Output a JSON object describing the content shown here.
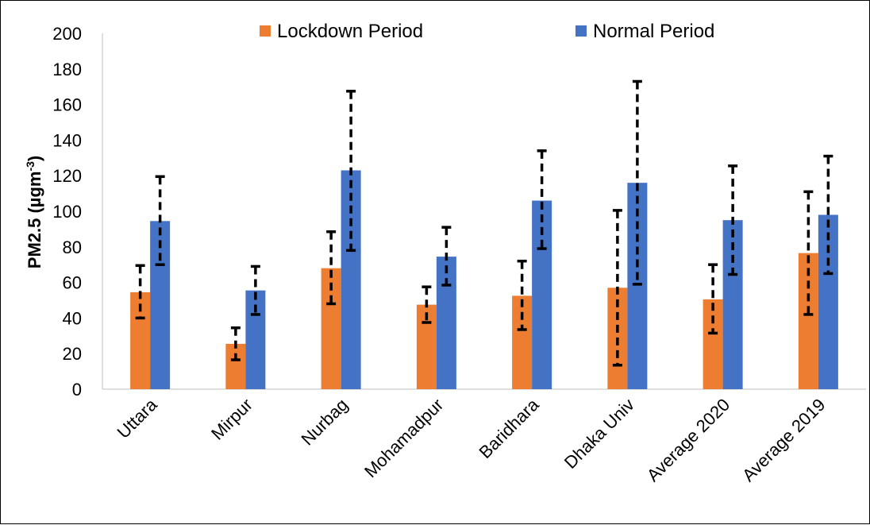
{
  "chart_data": {
    "type": "bar",
    "title": "",
    "xlabel": "",
    "ylabel": "PM2.5 (µgm",
    "ylabel_superscript": "-3",
    "ylabel_close": ")",
    "ylim": [
      0,
      200
    ],
    "yticks": [
      0,
      20,
      40,
      60,
      80,
      100,
      120,
      140,
      160,
      180,
      200
    ],
    "categories": [
      "Uttara",
      "Mirpur",
      "Nurbag",
      "Mohamadpur",
      "Baridhara",
      "Dhaka Univ",
      "Average 2020",
      "Average 2019"
    ],
    "series": [
      {
        "name": "Lockdown Period",
        "color": "#ED7D31",
        "values": [
          54.5,
          25.5,
          68,
          47.5,
          52.5,
          57,
          50.5,
          76.5
        ],
        "error_low": [
          40,
          16.5,
          48,
          37.5,
          33.5,
          13.5,
          31.5,
          42
        ],
        "error_high": [
          69.5,
          34.5,
          88.5,
          57.5,
          72,
          100.5,
          70,
          111
        ]
      },
      {
        "name": "Normal Period",
        "color": "#4472C4",
        "values": [
          94.5,
          55.5,
          123,
          74.5,
          106,
          116,
          95,
          98
        ],
        "error_low": [
          70,
          42,
          78,
          58.5,
          79,
          59,
          64.5,
          65
        ],
        "error_high": [
          119.5,
          69,
          167.5,
          91,
          134,
          173,
          125.5,
          131
        ]
      }
    ],
    "grid": false,
    "legend_position": "top"
  }
}
